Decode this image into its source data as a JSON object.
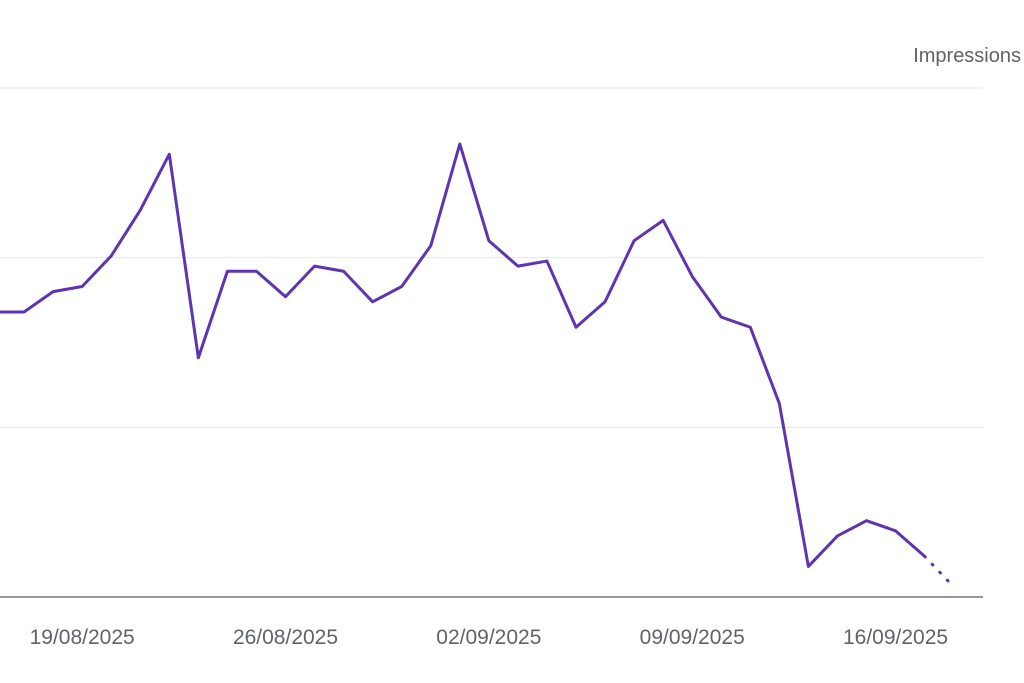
{
  "chart_data": {
    "type": "line",
    "title": "",
    "xlabel": "",
    "ylabel": "Impressions",
    "x": [
      "2025-08-16",
      "2025-08-17",
      "2025-08-18",
      "2025-08-19",
      "2025-08-20",
      "2025-08-21",
      "2025-08-22",
      "2025-08-23",
      "2025-08-24",
      "2025-08-25",
      "2025-08-26",
      "2025-08-27",
      "2025-08-28",
      "2025-08-29",
      "2025-08-30",
      "2025-08-31",
      "2025-09-01",
      "2025-09-02",
      "2025-09-03",
      "2025-09-04",
      "2025-09-05",
      "2025-09-06",
      "2025-09-07",
      "2025-09-08",
      "2025-09-09",
      "2025-09-10",
      "2025-09-11",
      "2025-09-12",
      "2025-09-13",
      "2025-09-14",
      "2025-09-15",
      "2025-09-16",
      "2025-09-17",
      "2025-09-18"
    ],
    "x_ticks": [
      "19/08/2025",
      "26/08/2025",
      "02/09/2025",
      "09/09/2025",
      "16/09/2025"
    ],
    "series": [
      {
        "name": "Impressions",
        "color": "#5e35b1",
        "values": [
          0.56,
          0.56,
          0.6,
          0.61,
          0.67,
          0.76,
          0.87,
          0.47,
          0.64,
          0.64,
          0.59,
          0.65,
          0.64,
          0.58,
          0.61,
          0.69,
          0.89,
          0.7,
          0.65,
          0.66,
          0.53,
          0.58,
          0.7,
          0.74,
          0.63,
          0.55,
          0.53,
          0.38,
          0.06,
          0.12,
          0.15,
          0.13,
          0.08,
          0.02
        ],
        "partial_from_index": 32
      }
    ],
    "ylim": [
      0,
      1
    ],
    "y_tick_labels_shown": false,
    "grid": true,
    "legend": "none"
  }
}
